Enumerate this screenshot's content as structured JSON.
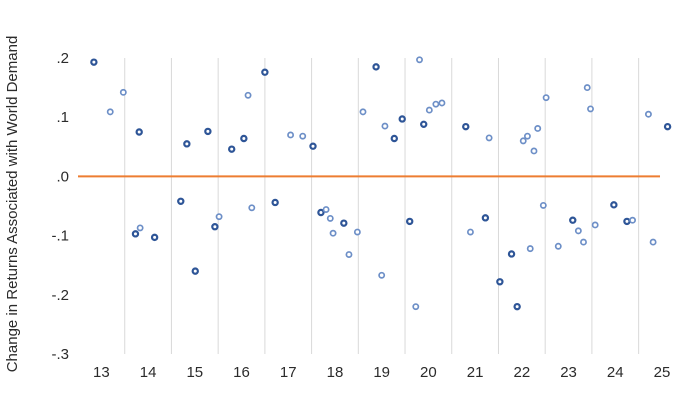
{
  "chart_data": {
    "type": "scatter",
    "title": "",
    "xlabel": "",
    "ylabel": "Change in Returns Associated with World Demand",
    "xlim": [
      12.5,
      25.3
    ],
    "ylim": [
      -0.3,
      0.2
    ],
    "x_ticks": [
      13,
      14,
      15,
      16,
      17,
      18,
      19,
      20,
      21,
      22,
      23,
      24,
      25
    ],
    "x_tick_labels": [
      "13",
      "14",
      "15",
      "16",
      "17",
      "18",
      "19",
      "20",
      "21",
      "22",
      "23",
      "24",
      "25"
    ],
    "y_ticks": [
      0.2,
      0.1,
      0.0,
      -0.1,
      -0.2,
      -0.3
    ],
    "y_tick_labels": [
      ".2",
      ".1",
      ".0",
      "-.1",
      "-.2",
      "-.3"
    ],
    "grid": "vertical",
    "legend": "none",
    "reference_line": {
      "y": 0.0,
      "color": "#ed7d31"
    },
    "colors": {
      "dark_marker": "#2e5597",
      "light_marker": "#6d8fc7",
      "grid": "#d9d9d9"
    },
    "series": [
      {
        "marker": "dark",
        "points": [
          [
            12.84,
            0.193
          ],
          [
            13.81,
            0.075
          ],
          [
            13.73,
            -0.097
          ],
          [
            14.14,
            -0.103
          ],
          [
            14.7,
            -0.042
          ],
          [
            14.83,
            0.055
          ],
          [
            15.01,
            -0.16
          ],
          [
            15.28,
            0.076
          ],
          [
            15.43,
            -0.085
          ],
          [
            15.79,
            0.046
          ],
          [
            16.05,
            0.064
          ],
          [
            16.5,
            0.176
          ],
          [
            16.72,
            -0.044
          ],
          [
            17.53,
            0.051
          ],
          [
            17.7,
            -0.061
          ],
          [
            18.19,
            -0.079
          ],
          [
            18.88,
            0.185
          ],
          [
            19.27,
            0.064
          ],
          [
            19.44,
            0.097
          ],
          [
            19.6,
            -0.076
          ],
          [
            19.9,
            0.088
          ],
          [
            20.8,
            0.084
          ],
          [
            21.22,
            -0.07
          ],
          [
            21.53,
            -0.178
          ],
          [
            21.78,
            -0.131
          ],
          [
            21.9,
            -0.22
          ],
          [
            23.09,
            -0.074
          ],
          [
            23.97,
            -0.048
          ],
          [
            24.25,
            -0.076
          ],
          [
            25.12,
            0.084
          ]
        ]
      },
      {
        "marker": "light",
        "points": [
          [
            13.19,
            0.109
          ],
          [
            13.47,
            0.142
          ],
          [
            13.83,
            -0.087
          ],
          [
            15.52,
            -0.068
          ],
          [
            16.14,
            0.137
          ],
          [
            16.22,
            -0.053
          ],
          [
            17.05,
            0.07
          ],
          [
            17.31,
            0.068
          ],
          [
            17.81,
            -0.056
          ],
          [
            17.9,
            -0.071
          ],
          [
            17.96,
            -0.096
          ],
          [
            18.3,
            -0.132
          ],
          [
            18.48,
            -0.094
          ],
          [
            18.6,
            0.109
          ],
          [
            19.0,
            -0.167
          ],
          [
            19.07,
            0.085
          ],
          [
            19.73,
            -0.22
          ],
          [
            19.81,
            0.197
          ],
          [
            20.02,
            0.112
          ],
          [
            20.16,
            0.122
          ],
          [
            20.29,
            0.124
          ],
          [
            20.9,
            -0.094
          ],
          [
            21.3,
            0.065
          ],
          [
            22.03,
            0.06
          ],
          [
            22.12,
            0.068
          ],
          [
            22.18,
            -0.122
          ],
          [
            22.26,
            0.043
          ],
          [
            22.34,
            0.081
          ],
          [
            22.46,
            -0.049
          ],
          [
            22.52,
            0.133
          ],
          [
            22.78,
            -0.118
          ],
          [
            23.21,
            -0.092
          ],
          [
            23.32,
            -0.111
          ],
          [
            23.4,
            0.15
          ],
          [
            23.47,
            0.114
          ],
          [
            23.57,
            -0.082
          ],
          [
            24.37,
            -0.074
          ],
          [
            24.71,
            0.105
          ],
          [
            24.81,
            -0.111
          ]
        ]
      }
    ]
  }
}
